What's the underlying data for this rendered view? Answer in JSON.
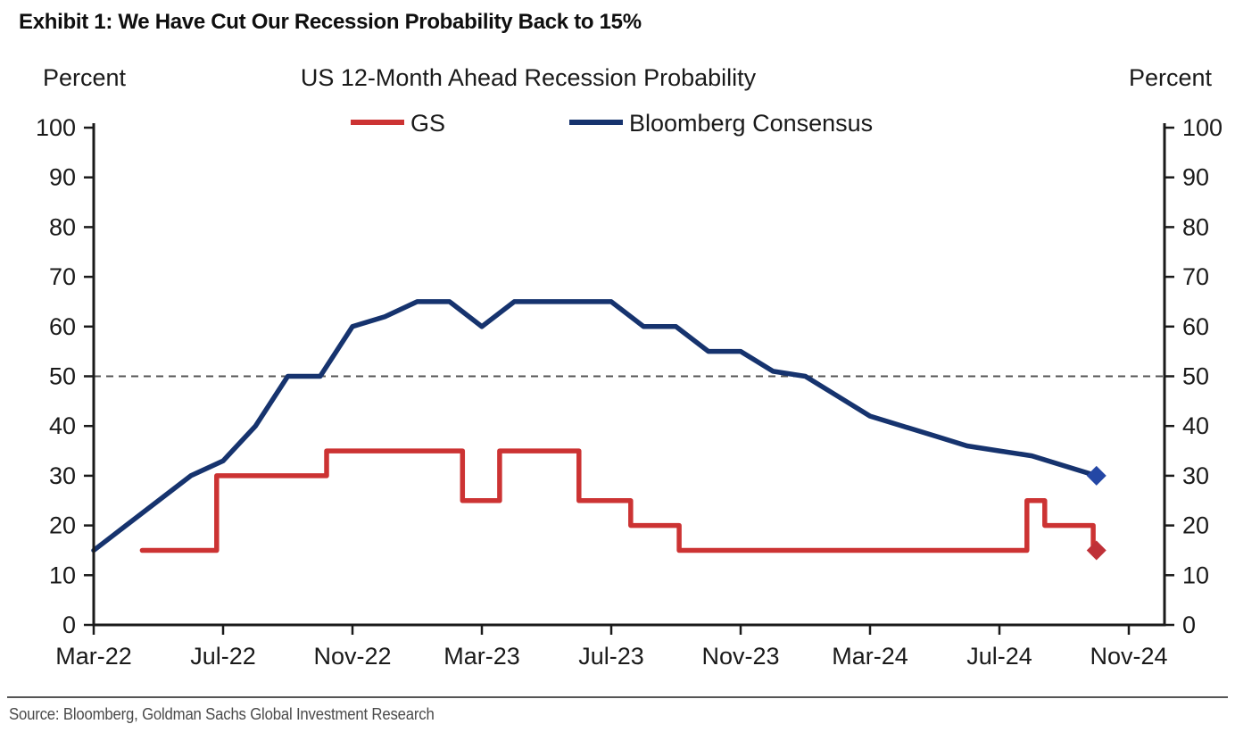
{
  "exhibit_title": "Exhibit 1: We Have Cut Our Recession Probability Back to 15%",
  "source_text": "Source: Bloomberg, Goldman Sachs Global Investment Research",
  "chart_data": {
    "type": "line",
    "title": "US 12-Month Ahead Recession Probability",
    "y_axis_left_label": "Percent",
    "y_axis_right_label": "Percent",
    "y_axis": {
      "min": 0,
      "max": 100,
      "ticks": [
        0,
        10,
        20,
        30,
        40,
        50,
        60,
        70,
        80,
        90,
        100
      ]
    },
    "x_axis": {
      "unit": "months since Mar-2022",
      "tick_labels": [
        "Mar-22",
        "Jul-22",
        "Nov-22",
        "Mar-23",
        "Jul-23",
        "Nov-23",
        "Mar-24",
        "Jul-24",
        "Nov-24"
      ],
      "tick_months": [
        0,
        4,
        8,
        12,
        16,
        20,
        24,
        28,
        32
      ]
    },
    "grid": false,
    "legend_position": "top-center",
    "axis_color": "#1a1a1a",
    "reference_line": {
      "y": 50,
      "style": "dashed",
      "color": "#555555"
    },
    "series": [
      {
        "name": "GS",
        "color": "#cc3333",
        "marker_color": "#bf3138",
        "line_style": "step",
        "end_marker": "diamond",
        "final_value": 15,
        "points": [
          [
            1.5,
            15
          ],
          [
            3.8,
            15
          ],
          [
            3.8,
            30
          ],
          [
            7.2,
            30
          ],
          [
            7.2,
            35
          ],
          [
            11.4,
            35
          ],
          [
            11.4,
            25
          ],
          [
            12.55,
            25
          ],
          [
            12.55,
            35
          ],
          [
            15,
            35
          ],
          [
            15,
            25
          ],
          [
            16.6,
            25
          ],
          [
            16.6,
            20
          ],
          [
            18.1,
            20
          ],
          [
            18.1,
            15
          ],
          [
            28.85,
            15
          ],
          [
            28.85,
            25
          ],
          [
            29.4,
            25
          ],
          [
            29.4,
            20
          ],
          [
            30.9,
            20
          ],
          [
            30.9,
            15
          ],
          [
            31,
            15
          ]
        ]
      },
      {
        "name": "Bloomberg Consensus",
        "color": "#16336e",
        "marker_color": "#2447a5",
        "line_style": "line",
        "end_marker": "diamond",
        "final_value": 30,
        "points": [
          [
            0,
            15
          ],
          [
            1,
            20
          ],
          [
            2,
            25
          ],
          [
            3,
            30
          ],
          [
            4,
            33
          ],
          [
            5,
            40
          ],
          [
            6,
            50
          ],
          [
            7,
            50
          ],
          [
            8,
            60
          ],
          [
            9,
            62
          ],
          [
            10,
            65
          ],
          [
            11,
            65
          ],
          [
            12,
            60
          ],
          [
            13,
            65
          ],
          [
            14,
            65
          ],
          [
            15,
            65
          ],
          [
            16,
            65
          ],
          [
            17,
            60
          ],
          [
            18,
            60
          ],
          [
            19,
            55
          ],
          [
            20,
            55
          ],
          [
            21,
            51
          ],
          [
            22,
            50
          ],
          [
            23,
            46
          ],
          [
            24,
            42
          ],
          [
            25,
            40
          ],
          [
            26,
            38
          ],
          [
            27,
            36
          ],
          [
            28,
            35
          ],
          [
            29,
            34
          ],
          [
            30,
            32
          ],
          [
            31,
            30
          ]
        ]
      }
    ]
  }
}
